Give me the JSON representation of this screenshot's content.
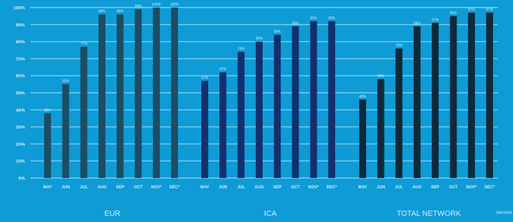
{
  "colors": {
    "background": "#0e9bd6",
    "grid": "#7fd0f0",
    "text": "#d9f1fb",
    "series_eur": "#1b4d64",
    "series_ica": "#12306e",
    "series_total": "#0d2a3b"
  },
  "footnote": "*planned",
  "chart_data": [
    {
      "type": "bar",
      "title": "EUR",
      "categories": [
        "MAY",
        "JUN",
        "JUL",
        "AUG",
        "SEP",
        "OCT",
        "NOV*",
        "DEC*"
      ],
      "values": [
        38,
        55,
        77,
        96,
        96,
        99,
        100,
        100
      ],
      "data_labels": [
        "38%",
        "55%",
        "77%",
        "96%",
        "96%",
        "99%",
        "100%",
        "100%"
      ],
      "ylim": [
        0,
        100
      ],
      "y_ticks": [
        "0%",
        "10%",
        "20%",
        "30%",
        "40%",
        "50%",
        "60%",
        "70%",
        "80%",
        "90%",
        "100%"
      ],
      "grid": true
    },
    {
      "type": "bar",
      "title": "ICA",
      "categories": [
        "MAY",
        "JUN",
        "JUL",
        "AUG",
        "SEP",
        "OCT",
        "NOV*",
        "DEC*"
      ],
      "values": [
        57,
        62,
        74,
        80,
        84,
        89,
        92,
        92
      ],
      "data_labels": [
        "57%",
        "62%",
        "74%",
        "80%",
        "84%",
        "89%",
        "92%",
        "92%"
      ],
      "ylim": [
        0,
        100
      ],
      "grid": true
    },
    {
      "type": "bar",
      "title": "TOTAL NETWORK",
      "categories": [
        "MAY",
        "JUN",
        "JUL",
        "AUG",
        "SEP",
        "OCT",
        "NOV*",
        "DEC*"
      ],
      "values": [
        46,
        58,
        76,
        89,
        91,
        95,
        97,
        97
      ],
      "data_labels": [
        "46%",
        "58%",
        "76%",
        "89%",
        "91%",
        "95%",
        "97%",
        "97%"
      ],
      "ylim": [
        0,
        100
      ],
      "grid": true
    }
  ]
}
